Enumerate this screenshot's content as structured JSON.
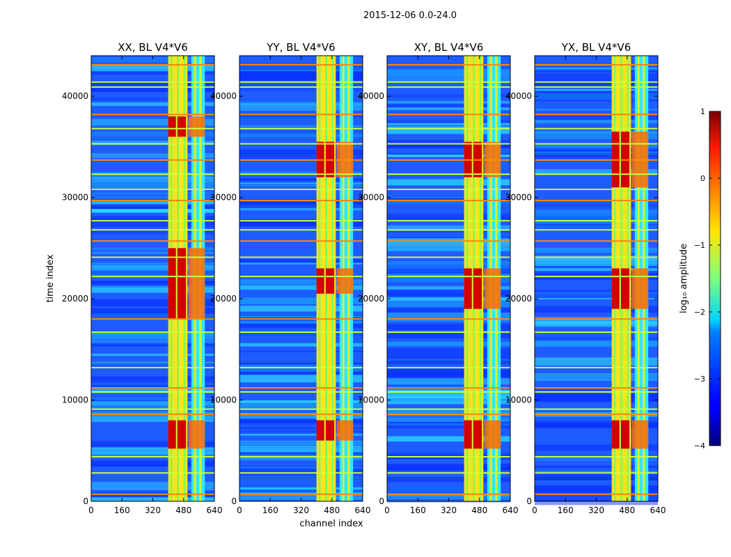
{
  "figure": {
    "suptitle": "2015-12-06 0.0-24.0"
  },
  "chart_data": {
    "type": "heatmap",
    "layout": "1x4 panels with shared colorbar",
    "shared_axes": {
      "xlabel": "channel index",
      "ylabel": "time index",
      "xlim": [
        0,
        640
      ],
      "ylim": [
        0,
        44000
      ],
      "xticks": [
        0,
        160,
        320,
        480,
        640
      ],
      "yticks": [
        0,
        10000,
        20000,
        30000,
        40000
      ]
    },
    "panels": [
      {
        "title": "XX, BL V4*V6",
        "polarization": "XX",
        "peak_bands": [
          [
            38000,
            36000
          ],
          [
            25000,
            18000
          ],
          [
            8000,
            5200
          ]
        ]
      },
      {
        "title": "YY, BL V4*V6",
        "polarization": "YY",
        "peak_bands": [
          [
            35500,
            32000
          ],
          [
            23000,
            20500
          ],
          [
            8000,
            6000
          ]
        ]
      },
      {
        "title": "XY, BL V4*V6",
        "polarization": "XY",
        "peak_bands": [
          [
            35500,
            32000
          ],
          [
            23000,
            19000
          ],
          [
            8000,
            5200
          ]
        ]
      },
      {
        "title": "YX, BL V4*V6",
        "polarization": "YX",
        "peak_bands": [
          [
            36500,
            31000
          ],
          [
            23000,
            19000
          ],
          [
            8000,
            5200
          ]
        ]
      }
    ],
    "bright_channel_bands": [
      [
        400,
        500
      ],
      [
        520,
        590
      ]
    ],
    "horizontal_rfi_rows": [
      700,
      2800,
      4400,
      8600,
      9100,
      10800,
      11200,
      13200,
      16700,
      18000,
      22200,
      24100,
      25700,
      26800,
      27700,
      29700,
      30800,
      32300,
      33700,
      35300,
      36800,
      38200,
      40900,
      41400,
      43100
    ],
    "colorbar": {
      "label": "log₁₀ amplitude",
      "range": [
        -4,
        1
      ],
      "ticks": [
        "1",
        "0",
        "−1",
        "−2",
        "−3",
        "−4"
      ],
      "colormap": "jet"
    }
  }
}
